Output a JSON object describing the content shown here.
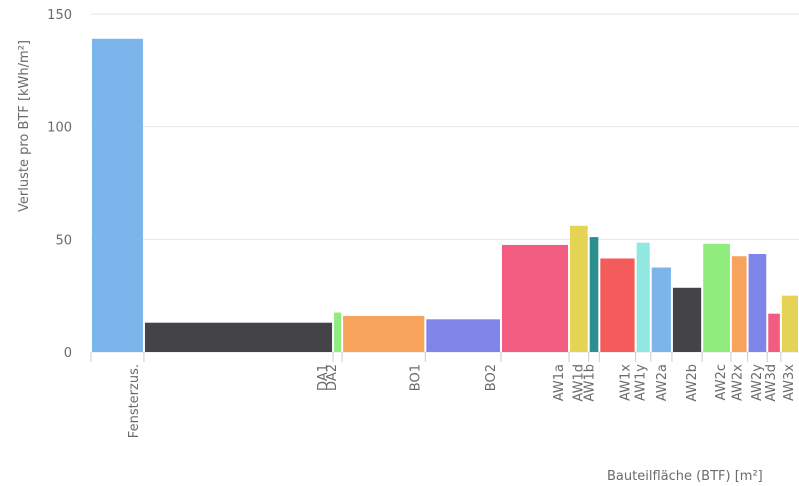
{
  "chart_data": {
    "type": "bar",
    "variable_width": true,
    "ylabel": "Verluste pro BTF [kWh/m²]",
    "xlabel": "Bauteilfläche (BTF) [m²]",
    "ylim": [
      0,
      150
    ],
    "yticks": [
      0,
      50,
      100,
      150
    ],
    "grid": true,
    "bars": [
      {
        "label": "Fensterzus.",
        "width": 3.5,
        "value": 139,
        "color": "#7cb5ec"
      },
      {
        "label": "DA1",
        "width": 12.5,
        "value": 13,
        "color": "#434348"
      },
      {
        "label": "DA2",
        "width": 0.6,
        "value": 17.5,
        "color": "#90ed7d"
      },
      {
        "label": "BO1",
        "width": 5.5,
        "value": 16,
        "color": "#f7a35c"
      },
      {
        "label": "BO2",
        "width": 5.0,
        "value": 14.5,
        "color": "#8085e9"
      },
      {
        "label": "AW1a",
        "width": 4.5,
        "value": 47.5,
        "color": "#f15c80"
      },
      {
        "label": "AW1d",
        "width": 1.3,
        "value": 56,
        "color": "#e4d354"
      },
      {
        "label": "AW1b",
        "width": 0.7,
        "value": 51,
        "color": "#2b908f"
      },
      {
        "label": "AW1x",
        "width": 2.4,
        "value": 41.5,
        "color": "#f45b5b"
      },
      {
        "label": "AW1y",
        "width": 1.0,
        "value": 48.5,
        "color": "#91e8e1"
      },
      {
        "label": "AW2a",
        "width": 1.4,
        "value": 37.5,
        "color": "#7cb5ec"
      },
      {
        "label": "AW2b",
        "width": 2.0,
        "value": 28.5,
        "color": "#434348"
      },
      {
        "label": "AW2c",
        "width": 1.9,
        "value": 48,
        "color": "#90ed7d"
      },
      {
        "label": "AW2x",
        "width": 1.1,
        "value": 42.5,
        "color": "#f7a35c"
      },
      {
        "label": "AW2y",
        "width": 1.3,
        "value": 43.5,
        "color": "#8085e9"
      },
      {
        "label": "AW3d",
        "width": 0.9,
        "value": 17,
        "color": "#f15c80"
      },
      {
        "label": "AW3x",
        "width": 1.2,
        "value": 25,
        "color": "#e4d354"
      }
    ]
  }
}
